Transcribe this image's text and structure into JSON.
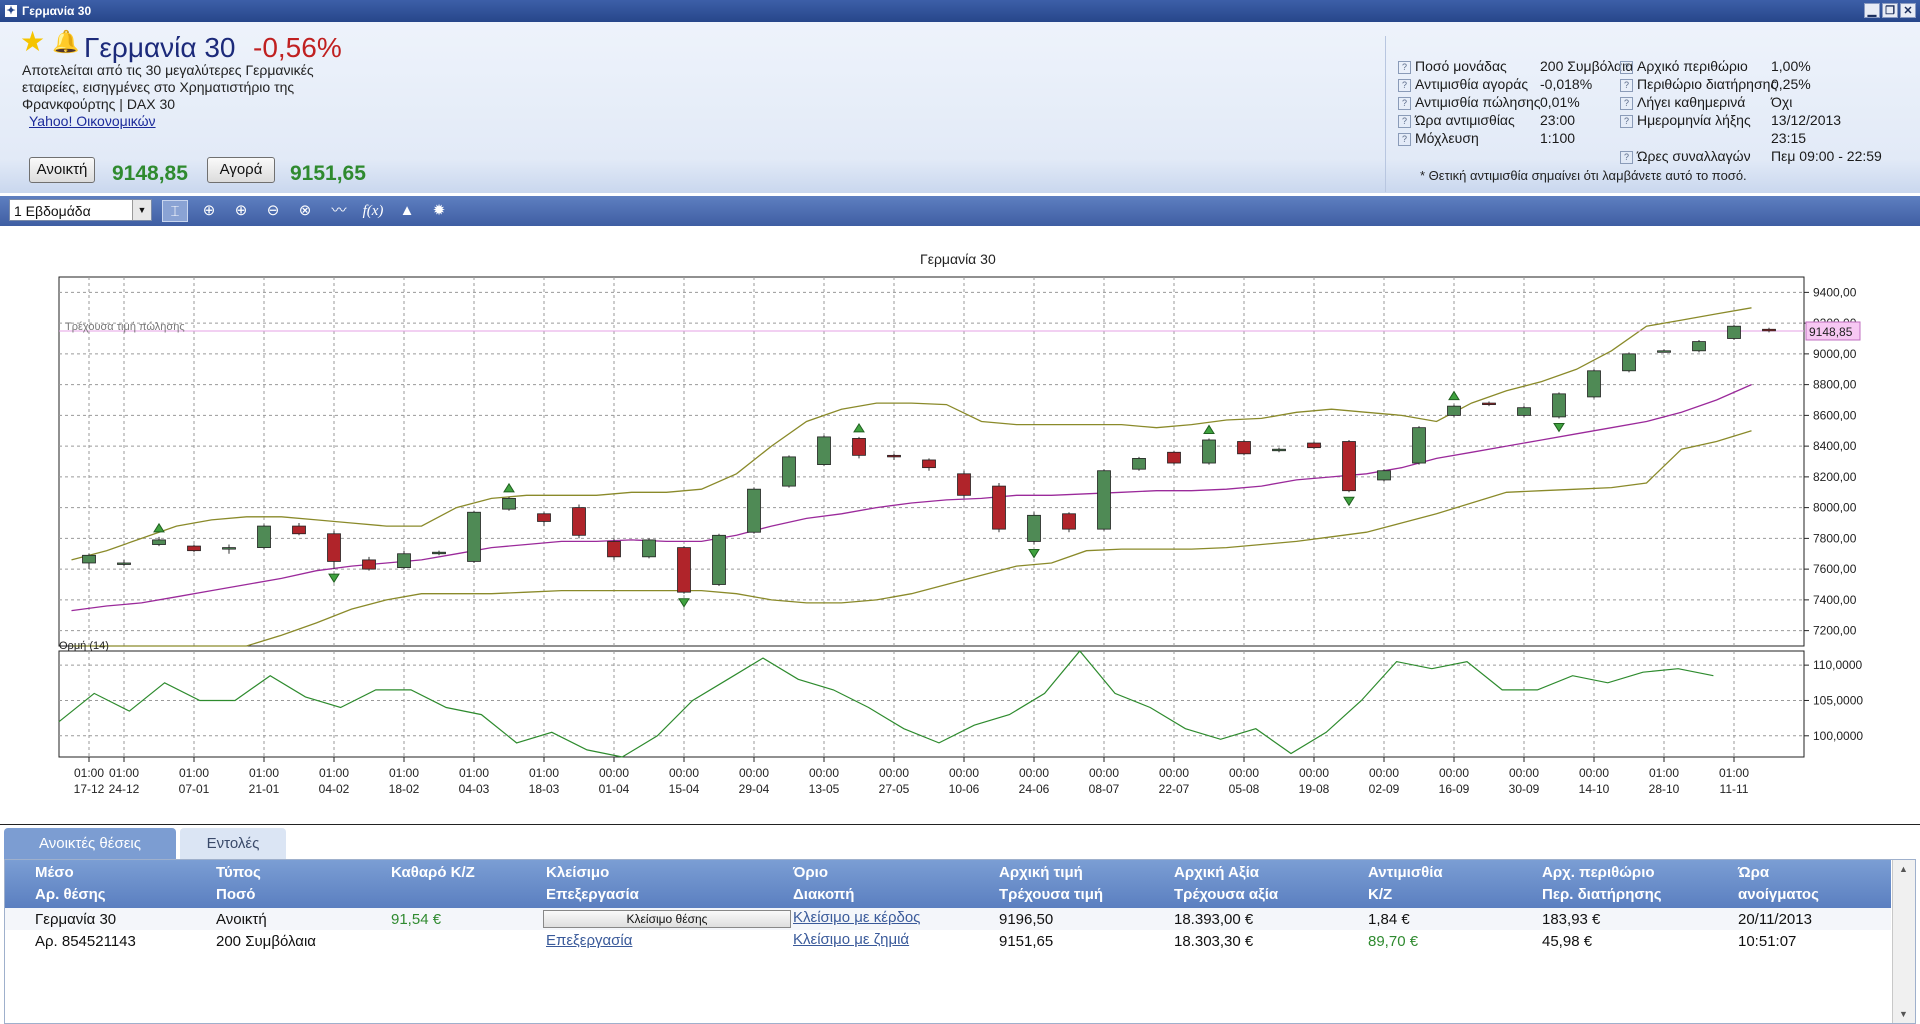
{
  "window": {
    "title": "Γερμανία 30"
  },
  "instrument": {
    "name": "Γερμανία 30",
    "change": "-0,56%",
    "description": "Αποτελείται από τις 30 μεγαλύτερες Γερμανικές εταιρείες, εισηγμένες στο Χρηματιστήριο της Φρανκφούρτης | DAX 30",
    "link": "Yahoo! Οικονομικών",
    "sell_label": "Ανοικτή",
    "sell_price": "9148,85",
    "buy_label": "Αγορά",
    "buy_price": "9151,65"
  },
  "info": {
    "left": [
      {
        "label": "Ποσό μονάδας",
        "value": "200 Συμβόλαια"
      },
      {
        "label": "Αντιμισθία αγοράς",
        "value": "-0,018%"
      },
      {
        "label": "Αντιμισθία πώλησης",
        "value": "0,01%"
      },
      {
        "label": "Ώρα αντιμισθίας",
        "value": "23:00"
      },
      {
        "label": "Μόχλευση",
        "value": "1:100"
      }
    ],
    "right": [
      {
        "label": "Αρχικό περιθώριο",
        "value": "1,00%"
      },
      {
        "label": "Περιθώριο διατήρησης",
        "value": "0,25%"
      },
      {
        "label": "Λήγει καθημερινά",
        "value": "Όχι"
      },
      {
        "label": "Ημερομηνία λήξης",
        "value": "13/12/2013"
      },
      {
        "label": "",
        "value": "23:15"
      },
      {
        "label": "Ώρες συναλλαγών",
        "value": "Πεμ 09:00 - 22:59"
      }
    ],
    "note": "* Θετική αντιμισθία σημαίνει ότι λαμβάνετε αυτό το ποσό."
  },
  "toolbar": {
    "period": "1 Εβδομάδα",
    "icons": [
      "cursor-icon",
      "crosshair-icon",
      "zoom-in-icon",
      "zoom-out-icon",
      "zoom-reset-icon",
      "line-chart-icon",
      "function-icon",
      "alert-bell-icon",
      "settings-gear-icon"
    ]
  },
  "chart_data": {
    "type": "candlestick",
    "title": "Γερμανία 30",
    "current_price_label": "Τρέχουσα τιμή πώλησης",
    "current_price": 9148.85,
    "current_price_text": "9148,85",
    "ylim": [
      7100,
      9500
    ],
    "yticks": [
      "7200,00",
      "7400,00",
      "7600,00",
      "7800,00",
      "8000,00",
      "8200,00",
      "8400,00",
      "8600,00",
      "8800,00",
      "9000,00",
      "9200,00",
      "9400,00"
    ],
    "ytick_values": [
      7200,
      7400,
      7600,
      7800,
      8000,
      8200,
      8400,
      8600,
      8800,
      9000,
      9200,
      9400
    ],
    "xlabels": [
      {
        "i": 0,
        "t": "01:00",
        "d": "17-12"
      },
      {
        "i": 1,
        "t": "01:00",
        "d": "24-12"
      },
      {
        "i": 3,
        "t": "01:00",
        "d": "07-01"
      },
      {
        "i": 5,
        "t": "01:00",
        "d": "21-01"
      },
      {
        "i": 7,
        "t": "01:00",
        "d": "04-02"
      },
      {
        "i": 9,
        "t": "01:00",
        "d": "18-02"
      },
      {
        "i": 11,
        "t": "01:00",
        "d": "04-03"
      },
      {
        "i": 13,
        "t": "01:00",
        "d": "18-03"
      },
      {
        "i": 15,
        "t": "00:00",
        "d": "01-04"
      },
      {
        "i": 17,
        "t": "00:00",
        "d": "15-04"
      },
      {
        "i": 19,
        "t": "00:00",
        "d": "29-04"
      },
      {
        "i": 21,
        "t": "00:00",
        "d": "13-05"
      },
      {
        "i": 23,
        "t": "00:00",
        "d": "27-05"
      },
      {
        "i": 25,
        "t": "00:00",
        "d": "10-06"
      },
      {
        "i": 27,
        "t": "00:00",
        "d": "24-06"
      },
      {
        "i": 29,
        "t": "00:00",
        "d": "08-07"
      },
      {
        "i": 31,
        "t": "00:00",
        "d": "22-07"
      },
      {
        "i": 33,
        "t": "00:00",
        "d": "05-08"
      },
      {
        "i": 35,
        "t": "00:00",
        "d": "19-08"
      },
      {
        "i": 37,
        "t": "00:00",
        "d": "02-09"
      },
      {
        "i": 39,
        "t": "00:00",
        "d": "16-09"
      },
      {
        "i": 41,
        "t": "00:00",
        "d": "30-09"
      },
      {
        "i": 43,
        "t": "00:00",
        "d": "14-10"
      },
      {
        "i": 45,
        "t": "01:00",
        "d": "28-10"
      },
      {
        "i": 47,
        "t": "01:00",
        "d": "11-11"
      }
    ],
    "candles": [
      [
        7640,
        7690,
        7600,
        7700
      ],
      [
        7635,
        7640,
        7620,
        7660
      ],
      [
        7760,
        7790,
        7750,
        7810
      ],
      [
        7750,
        7720,
        7710,
        7760
      ],
      [
        7730,
        7740,
        7700,
        7760
      ],
      [
        7740,
        7880,
        7730,
        7890
      ],
      [
        7880,
        7830,
        7820,
        7900
      ],
      [
        7830,
        7650,
        7600,
        7850
      ],
      [
        7660,
        7600,
        7590,
        7680
      ],
      [
        7610,
        7700,
        7600,
        7720
      ],
      [
        7700,
        7710,
        7690,
        7720
      ],
      [
        7650,
        7970,
        7640,
        7980
      ],
      [
        7990,
        8060,
        7980,
        8070
      ],
      [
        7960,
        7910,
        7880,
        7970
      ],
      [
        8000,
        7820,
        7800,
        8020
      ],
      [
        7780,
        7680,
        7660,
        7800
      ],
      [
        7680,
        7790,
        7670,
        7800
      ],
      [
        7740,
        7450,
        7440,
        7750
      ],
      [
        7500,
        7820,
        7490,
        7830
      ],
      [
        7840,
        8120,
        7830,
        8130
      ],
      [
        8140,
        8330,
        8130,
        8340
      ],
      [
        8280,
        8460,
        8270,
        8470
      ],
      [
        8450,
        8340,
        8320,
        8460
      ],
      [
        8340,
        8330,
        8310,
        8350
      ],
      [
        8310,
        8260,
        8240,
        8320
      ],
      [
        8220,
        8080,
        8060,
        8240
      ],
      [
        8140,
        7860,
        7840,
        8160
      ],
      [
        7780,
        7950,
        7760,
        7970
      ],
      [
        7960,
        7860,
        7840,
        7970
      ],
      [
        7860,
        8240,
        7850,
        8250
      ],
      [
        8250,
        8320,
        8240,
        8330
      ],
      [
        8360,
        8290,
        8280,
        8370
      ],
      [
        8290,
        8440,
        8280,
        8450
      ],
      [
        8430,
        8350,
        8340,
        8440
      ],
      [
        8370,
        8380,
        8360,
        8390
      ],
      [
        8420,
        8390,
        8380,
        8430
      ],
      [
        8430,
        8110,
        8100,
        8440
      ],
      [
        8180,
        8240,
        8170,
        8250
      ],
      [
        8290,
        8520,
        8280,
        8530
      ],
      [
        8600,
        8660,
        8590,
        8670
      ],
      [
        8680,
        8670,
        8660,
        8690
      ],
      [
        8600,
        8650,
        8590,
        8660
      ],
      [
        8590,
        8740,
        8580,
        8750
      ],
      [
        8720,
        8890,
        8710,
        8900
      ],
      [
        8890,
        9000,
        8880,
        9010
      ],
      [
        9020,
        9020,
        9010,
        9030
      ],
      [
        9020,
        9080,
        9010,
        9090
      ],
      [
        9100,
        9180,
        9090,
        9190
      ],
      [
        9160,
        9150,
        9140,
        9170
      ]
    ],
    "arrows": [
      {
        "i": 2,
        "dir": "up"
      },
      {
        "i": 7,
        "dir": "down"
      },
      {
        "i": 12,
        "dir": "up"
      },
      {
        "i": 17,
        "dir": "down"
      },
      {
        "i": 22,
        "dir": "up"
      },
      {
        "i": 27,
        "dir": "down"
      },
      {
        "i": 32,
        "dir": "up"
      },
      {
        "i": 36,
        "dir": "down"
      },
      {
        "i": 39,
        "dir": "up"
      },
      {
        "i": 42,
        "dir": "down"
      }
    ],
    "bb_upper": [
      7660,
      7720,
      7800,
      7880,
      7920,
      7940,
      7940,
      7920,
      7900,
      7880,
      7880,
      8000,
      8060,
      8080,
      8080,
      8080,
      8100,
      8100,
      8120,
      8220,
      8400,
      8560,
      8640,
      8680,
      8680,
      8670,
      8560,
      8540,
      8540,
      8540,
      8540,
      8520,
      8540,
      8570,
      8580,
      8620,
      8640,
      8620,
      8600,
      8560,
      8680,
      8760,
      8820,
      8900,
      9020,
      9180,
      9220,
      9260,
      9300
    ],
    "bb_middle": [
      7330,
      7360,
      7380,
      7420,
      7460,
      7500,
      7540,
      7590,
      7620,
      7640,
      7660,
      7700,
      7740,
      7760,
      7780,
      7780,
      7790,
      7780,
      7780,
      7820,
      7880,
      7930,
      7960,
      8000,
      8030,
      8050,
      8060,
      8080,
      8080,
      8090,
      8100,
      8110,
      8110,
      8120,
      8140,
      8180,
      8200,
      8220,
      8260,
      8320,
      8360,
      8400,
      8440,
      8480,
      8520,
      8560,
      8620,
      8700,
      8800
    ],
    "bb_lower": [
      7000,
      7000,
      7000,
      7000,
      7000,
      7050,
      7170,
      7250,
      7340,
      7400,
      7440,
      7440,
      7440,
      7450,
      7460,
      7460,
      7460,
      7460,
      7460,
      7440,
      7400,
      7380,
      7380,
      7400,
      7440,
      7500,
      7560,
      7620,
      7640,
      7720,
      7730,
      7730,
      7730,
      7740,
      7760,
      7780,
      7810,
      7840,
      7900,
      7960,
      8030,
      8100,
      8110,
      8120,
      8130,
      8160,
      8380,
      8430,
      8500
    ],
    "momentum_label": "Ορμή (14)",
    "momentum_ticks": [
      "100,0000",
      "105,0000",
      "110,0000"
    ],
    "momentum_tick_values": [
      100,
      105,
      110
    ],
    "momentum_ylim": [
      97,
      112
    ],
    "momentum": [
      102,
      106,
      103.5,
      107.5,
      105,
      105,
      108.5,
      105.5,
      104,
      106.5,
      106.5,
      104,
      103,
      99,
      100.5,
      98,
      97,
      100,
      105,
      108,
      111,
      108,
      106.5,
      104,
      101,
      99,
      101.5,
      103,
      106,
      112,
      106,
      104,
      101,
      99.5,
      101,
      97.5,
      100.5,
      105,
      110.5,
      109.5,
      110.5,
      106.5,
      106.5,
      108.5,
      107.5,
      109,
      109.5,
      108.5
    ]
  },
  "tabs": {
    "open": "Ανοικτές θέσεις",
    "orders": "Εντολές"
  },
  "grid": {
    "headers": [
      [
        "Μέσο",
        "Αρ. θέσης"
      ],
      [
        "Τύπος",
        "Ποσό"
      ],
      [
        "Καθαρό Κ/Ζ",
        ""
      ],
      [
        "Κλείσιμο",
        "Επεξεργασία"
      ],
      [
        "Όριο",
        "Διακοπή"
      ],
      [
        "Αρχική τιμή",
        "Τρέχουσα τιμή"
      ],
      [
        "Αρχική Αξία",
        "Τρέχουσα αξία"
      ],
      [
        "Αντιμισθία",
        "Κ/Ζ"
      ],
      [
        "Αρχ. περιθώριο",
        "Περ. διατήρησης"
      ],
      [
        "Ώρα",
        "ανοίγματος"
      ]
    ],
    "row": {
      "instrument": "Γερμανία 30",
      "position_no": "Αρ. 854521143",
      "type": "Ανοικτή",
      "amount": "200 Συμβόλαια",
      "net_pl": "91,54 €",
      "close_btn": "Κλείσιμο θέσης",
      "edit_link": "Επεξεργασία",
      "limit_link": "Κλείσιμο με κέρδος",
      "stop_link": "Κλείσιμο με ζημιά",
      "open_price": "9196,50",
      "current_price": "9151,65",
      "open_value": "18.393,00 €",
      "current_value": "18.303,30 €",
      "swap": "1,84 €",
      "pl": "89,70 €",
      "init_margin": "183,93 €",
      "maint_margin": "45,98 €",
      "open_date": "20/11/2013",
      "open_time": "10:51:07"
    }
  }
}
